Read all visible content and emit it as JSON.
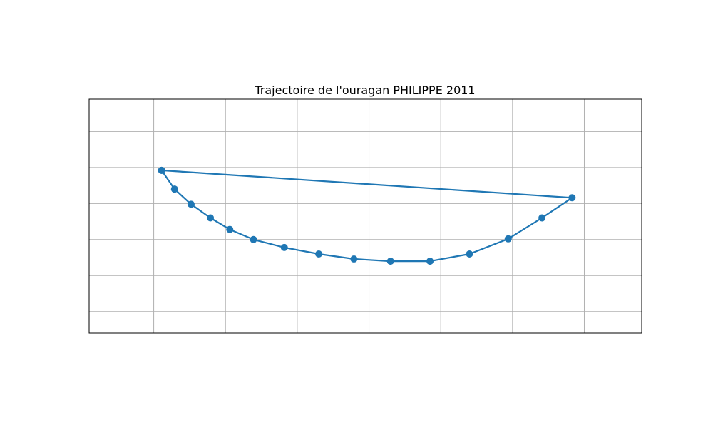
{
  "chart_data": {
    "type": "line",
    "title": "Trajectoire de l'ouragan PHILIPPE 2011",
    "xlabel": "",
    "ylabel": "",
    "grid": true,
    "legend": "none",
    "xlim": [
      -0.9,
      6.8
    ],
    "ylim": [
      -1.3,
      1.95
    ],
    "x_gridlines": [
      0,
      1,
      2,
      3,
      4,
      5,
      6
    ],
    "y_gridlines": [
      -1,
      -0.5,
      0,
      0.5,
      1,
      1.5
    ],
    "color": "#1f77b4",
    "series": [
      {
        "name": "PHILIPPE 2011",
        "x": [
          0.11,
          0.29,
          0.52,
          0.79,
          1.06,
          1.39,
          1.82,
          2.3,
          2.79,
          3.3,
          3.85,
          4.4,
          4.94,
          5.41,
          5.83,
          0.11
        ],
        "y": [
          0.96,
          0.7,
          0.49,
          0.3,
          0.14,
          0.0,
          -0.11,
          -0.2,
          -0.27,
          -0.3,
          -0.3,
          -0.2,
          0.01,
          0.3,
          0.58,
          0.96
        ]
      }
    ]
  }
}
